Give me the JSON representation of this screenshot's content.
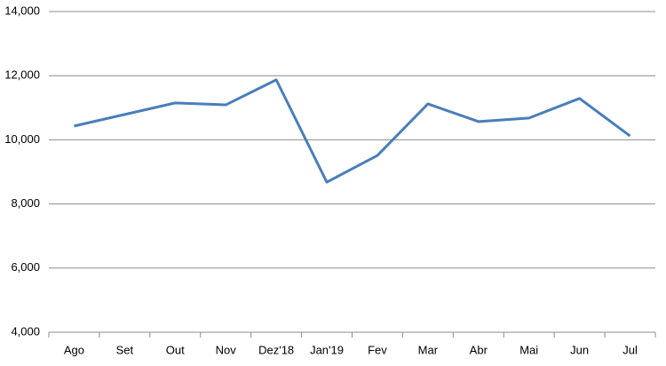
{
  "chart_data": {
    "type": "line",
    "categories": [
      "Ago",
      "Set",
      "Out",
      "Nov",
      "Dez'18",
      "Jan'19",
      "Fev",
      "Mar",
      "Abr",
      "Mai",
      "Jun",
      "Jul"
    ],
    "series": [
      {
        "color": "#4a7ebb",
        "values": [
          10430,
          10790,
          11150,
          11090,
          11870,
          8680,
          9510,
          11120,
          10570,
          10680,
          11290,
          10120
        ]
      }
    ],
    "ylim": [
      4000,
      14000
    ],
    "yticks": [
      {
        "value": 4000,
        "label": "4,000"
      },
      {
        "value": 6000,
        "label": "6,000"
      },
      {
        "value": 8000,
        "label": "8,000"
      },
      {
        "value": 10000,
        "label": "10,000"
      },
      {
        "value": 12000,
        "label": "12,000"
      },
      {
        "value": 14000,
        "label": "14,000"
      }
    ],
    "grid": true
  }
}
